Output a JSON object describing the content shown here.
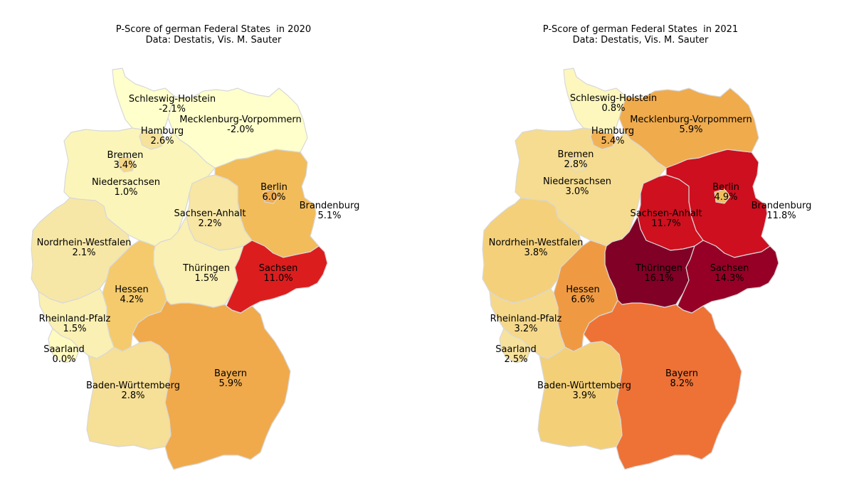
{
  "chart_data": [
    {
      "type": "choropleth",
      "title": "P-Score of german Federal States  in 2020",
      "subtitle": "Data: Destatis, Vis. M. Sauter",
      "regions": [
        {
          "key": "sh",
          "name": "Schleswig-Holstein",
          "value_label": "-2.1%",
          "value": -2.1,
          "color": "#ffffcc"
        },
        {
          "key": "mv",
          "name": "Mecklenburg-Vorpommern",
          "value_label": "-2.0%",
          "value": -2.0,
          "color": "#ffffcc"
        },
        {
          "key": "hh",
          "name": "Hamburg",
          "value_label": "2.6%",
          "value": 2.6,
          "color": "#f6e29b"
        },
        {
          "key": "hb",
          "name": "Bremen",
          "value_label": "3.4%",
          "value": 3.4,
          "color": "#f5d685"
        },
        {
          "key": "ni",
          "name": "Niedersachsen",
          "value_label": "1.0%",
          "value": 1.0,
          "color": "#fbf5b9"
        },
        {
          "key": "be",
          "name": "Berlin",
          "value_label": "6.0%",
          "value": 6.0,
          "color": "#f0ab4e"
        },
        {
          "key": "bb",
          "name": "Brandenburg",
          "value_label": "5.1%",
          "value": 5.1,
          "color": "#f2bc5a"
        },
        {
          "key": "st",
          "name": "Sachsen-Anhalt",
          "value_label": "2.2%",
          "value": 2.2,
          "color": "#f7e6a4"
        },
        {
          "key": "nw",
          "name": "Nordrhein-Westfalen",
          "value_label": "2.1%",
          "value": 2.1,
          "color": "#f7e7a6"
        },
        {
          "key": "th",
          "name": "Thüringen",
          "value_label": "1.5%",
          "value": 1.5,
          "color": "#faf0b3"
        },
        {
          "key": "sn",
          "name": "Sachsen",
          "value_label": "11.0%",
          "value": 11.0,
          "color": "#dc1d1e"
        },
        {
          "key": "he",
          "name": "Hessen",
          "value_label": "4.2%",
          "value": 4.2,
          "color": "#f4ca6d"
        },
        {
          "key": "rp",
          "name": "Rheinland-Pfalz",
          "value_label": "1.5%",
          "value": 1.5,
          "color": "#faf0b3"
        },
        {
          "key": "sl",
          "name": "Saarland",
          "value_label": "0.0%",
          "value": 0.0,
          "color": "#fffac0"
        },
        {
          "key": "bw",
          "name": "Baden-Württemberg",
          "value_label": "2.8%",
          "value": 2.8,
          "color": "#f6df96"
        },
        {
          "key": "by",
          "name": "Bayern",
          "value_label": "5.9%",
          "value": 5.9,
          "color": "#f0aa4c"
        }
      ]
    },
    {
      "type": "choropleth",
      "title": "P-Score of german Federal States  in 2021",
      "subtitle": "Data: Destatis, Vis. M. Sauter",
      "regions": [
        {
          "key": "sh",
          "name": "Schleswig-Holstein",
          "value_label": "0.8%",
          "value": 0.8,
          "color": "#fdf7bd"
        },
        {
          "key": "mv",
          "name": "Mecklenburg-Vorpommern",
          "value_label": "5.9%",
          "value": 5.9,
          "color": "#f0ab4d"
        },
        {
          "key": "hh",
          "name": "Hamburg",
          "value_label": "5.4%",
          "value": 5.4,
          "color": "#f1b255"
        },
        {
          "key": "hb",
          "name": "Bremen",
          "value_label": "2.8%",
          "value": 2.8,
          "color": "#f6df96"
        },
        {
          "key": "ni",
          "name": "Niedersachsen",
          "value_label": "3.0%",
          "value": 3.0,
          "color": "#f6dc90"
        },
        {
          "key": "be",
          "name": "Berlin",
          "value_label": "4.9%",
          "value": 4.9,
          "color": "#f2be5d"
        },
        {
          "key": "bb",
          "name": "Brandenburg",
          "value_label": "11.8%",
          "value": 11.8,
          "color": "#cd0f1f"
        },
        {
          "key": "st",
          "name": "Sachsen-Anhalt",
          "value_label": "11.7%",
          "value": 11.7,
          "color": "#ce101f"
        },
        {
          "key": "nw",
          "name": "Nordrhein-Westfalen",
          "value_label": "3.8%",
          "value": 3.8,
          "color": "#f4d07a"
        },
        {
          "key": "th",
          "name": "Thüringen",
          "value_label": "16.1%",
          "value": 16.1,
          "color": "#800026"
        },
        {
          "key": "sn",
          "name": "Sachsen",
          "value_label": "14.3%",
          "value": 14.3,
          "color": "#960026"
        },
        {
          "key": "he",
          "name": "Hessen",
          "value_label": "6.6%",
          "value": 6.6,
          "color": "#ef9a43"
        },
        {
          "key": "rp",
          "name": "Rheinland-Pfalz",
          "value_label": "3.2%",
          "value": 3.2,
          "color": "#f5d88a"
        },
        {
          "key": "sl",
          "name": "Saarland",
          "value_label": "2.5%",
          "value": 2.5,
          "color": "#f7e29d"
        },
        {
          "key": "bw",
          "name": "Baden-Württemberg",
          "value_label": "3.9%",
          "value": 3.9,
          "color": "#f3cf77"
        },
        {
          "key": "by",
          "name": "Bayern",
          "value_label": "8.2%",
          "value": 8.2,
          "color": "#ee7236"
        }
      ]
    }
  ]
}
